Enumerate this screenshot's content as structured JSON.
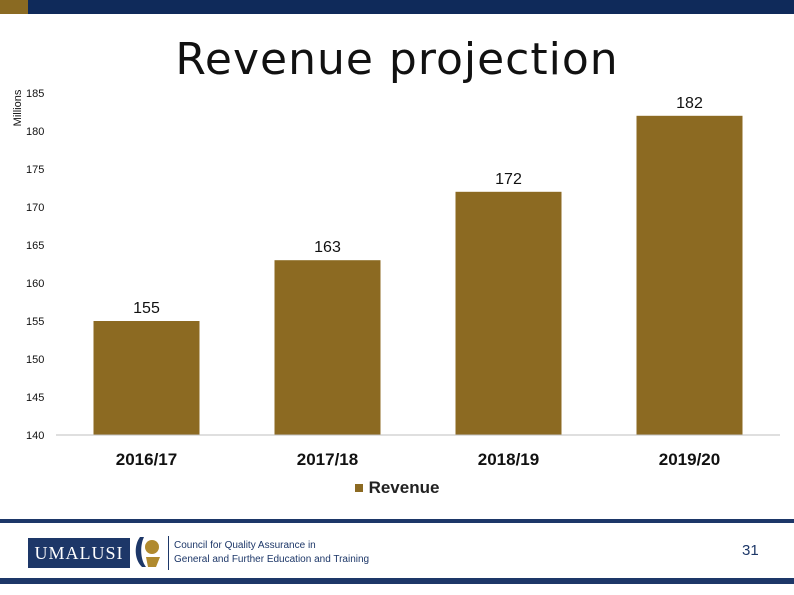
{
  "slide": {
    "title": "Revenue projection",
    "page_number": "31",
    "footer": {
      "logo_text": "UMALUSI",
      "tagline_1": "Council for Quality Assurance in",
      "tagline_2": "General and Further Education and Training"
    }
  },
  "colors": {
    "bar": "#8c6a22",
    "header": "#0f2a5a",
    "accent": "#8a6a22"
  },
  "chart_data": {
    "type": "bar",
    "title": "Revenue projection",
    "ylabel": "Millions",
    "xlabel": "",
    "categories": [
      "2016/17",
      "2017/18",
      "2018/19",
      "2019/20"
    ],
    "series": [
      {
        "name": "Revenue",
        "values": [
          155,
          163,
          172,
          182
        ]
      }
    ],
    "data_labels": [
      "155",
      "163",
      "172",
      "182"
    ],
    "ylim": [
      140,
      185
    ],
    "yticks": [
      140,
      145,
      150,
      155,
      160,
      165,
      170,
      175,
      180,
      185
    ],
    "grid": false,
    "legend": "bottom"
  }
}
